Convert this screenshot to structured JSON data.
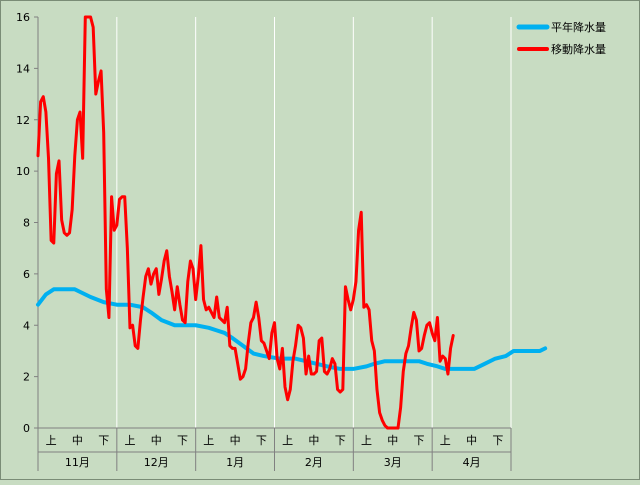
{
  "chart_data": {
    "type": "line",
    "title": "",
    "xlabel": "",
    "ylabel": "",
    "ylim": [
      0,
      16
    ],
    "yticks": [
      0,
      2,
      4,
      6,
      8,
      10,
      12,
      14,
      16
    ],
    "grid": "vertical",
    "legend_position": "right",
    "period_labels": [
      "上",
      "中",
      "下",
      "上",
      "中",
      "下",
      "上",
      "中",
      "下",
      "上",
      "中",
      "下",
      "上",
      "中",
      "下",
      "上",
      "中",
      "下"
    ],
    "month_labels": [
      "11月",
      "12月",
      "1月",
      "2月",
      "3月",
      "4月"
    ],
    "num_points": 181,
    "series": [
      {
        "name": "平年降水量",
        "color": "#00b0f0",
        "width": 4,
        "points": [
          [
            0,
            4.8
          ],
          [
            3,
            5.2
          ],
          [
            6,
            5.4
          ],
          [
            14,
            5.4
          ],
          [
            16,
            5.3
          ],
          [
            20,
            5.1
          ],
          [
            25,
            4.9
          ],
          [
            30,
            4.8
          ],
          [
            35,
            4.8
          ],
          [
            40,
            4.7
          ],
          [
            43,
            4.5
          ],
          [
            47,
            4.2
          ],
          [
            52,
            4.0
          ],
          [
            60,
            4.0
          ],
          [
            65,
            3.9
          ],
          [
            68,
            3.8
          ],
          [
            71,
            3.7
          ],
          [
            74,
            3.5
          ],
          [
            78,
            3.2
          ],
          [
            82,
            2.9
          ],
          [
            86,
            2.8
          ],
          [
            92,
            2.7
          ],
          [
            98,
            2.7
          ],
          [
            102,
            2.6
          ],
          [
            106,
            2.5
          ],
          [
            110,
            2.4
          ],
          [
            115,
            2.3
          ],
          [
            120,
            2.3
          ],
          [
            125,
            2.4
          ],
          [
            128,
            2.5
          ],
          [
            132,
            2.6
          ],
          [
            138,
            2.6
          ],
          [
            142,
            2.6
          ],
          [
            145,
            2.6
          ],
          [
            148,
            2.5
          ],
          [
            152,
            2.4
          ],
          [
            155,
            2.3
          ],
          [
            160,
            2.3
          ],
          [
            166,
            2.3
          ],
          [
            170,
            2.5
          ],
          [
            174,
            2.7
          ],
          [
            178,
            2.8
          ],
          [
            181,
            3.0
          ],
          [
            186,
            3.0
          ],
          [
            191,
            3.0
          ],
          [
            193,
            3.1
          ]
        ]
      },
      {
        "name": "移動降水量",
        "color": "#ff0000",
        "width": 3,
        "points": [
          [
            0,
            10.6
          ],
          [
            1,
            12.7
          ],
          [
            2,
            12.9
          ],
          [
            3,
            12.3
          ],
          [
            4,
            10.5
          ],
          [
            5,
            7.3
          ],
          [
            6,
            7.2
          ],
          [
            7,
            9.9
          ],
          [
            8,
            10.4
          ],
          [
            9,
            8.1
          ],
          [
            10,
            7.6
          ],
          [
            11,
            7.5
          ],
          [
            12,
            7.6
          ],
          [
            13,
            8.5
          ],
          [
            14,
            10.6
          ],
          [
            15,
            12.0
          ],
          [
            16,
            12.3
          ],
          [
            17,
            10.5
          ],
          [
            18,
            16.0
          ],
          [
            19,
            16.0
          ],
          [
            20,
            16.0
          ],
          [
            21,
            15.6
          ],
          [
            22,
            13.0
          ],
          [
            23,
            13.5
          ],
          [
            24,
            13.9
          ],
          [
            25,
            11.5
          ],
          [
            26,
            5.4
          ],
          [
            27,
            4.3
          ],
          [
            28,
            9.0
          ],
          [
            29,
            7.7
          ],
          [
            30,
            7.9
          ],
          [
            31,
            8.9
          ],
          [
            32,
            9.0
          ],
          [
            33,
            9.0
          ],
          [
            34,
            7.0
          ],
          [
            35,
            3.9
          ],
          [
            36,
            4.0
          ],
          [
            37,
            3.2
          ],
          [
            38,
            3.1
          ],
          [
            39,
            4.2
          ],
          [
            40,
            5.1
          ],
          [
            41,
            5.9
          ],
          [
            42,
            6.2
          ],
          [
            43,
            5.6
          ],
          [
            44,
            6.0
          ],
          [
            45,
            6.2
          ],
          [
            46,
            5.2
          ],
          [
            47,
            5.8
          ],
          [
            48,
            6.5
          ],
          [
            49,
            6.9
          ],
          [
            50,
            5.9
          ],
          [
            51,
            5.3
          ],
          [
            52,
            4.6
          ],
          [
            53,
            5.5
          ],
          [
            54,
            4.8
          ],
          [
            55,
            4.2
          ],
          [
            56,
            4.1
          ],
          [
            57,
            5.7
          ],
          [
            58,
            6.5
          ],
          [
            59,
            6.2
          ],
          [
            60,
            5.0
          ],
          [
            61,
            5.9
          ],
          [
            62,
            7.1
          ],
          [
            63,
            5.0
          ],
          [
            64,
            4.6
          ],
          [
            65,
            4.7
          ],
          [
            66,
            4.5
          ],
          [
            67,
            4.3
          ],
          [
            68,
            5.1
          ],
          [
            69,
            4.3
          ],
          [
            70,
            4.2
          ],
          [
            71,
            4.1
          ],
          [
            72,
            4.7
          ],
          [
            73,
            3.2
          ],
          [
            74,
            3.1
          ],
          [
            75,
            3.1
          ],
          [
            76,
            2.5
          ],
          [
            77,
            1.9
          ],
          [
            78,
            2.0
          ],
          [
            79,
            2.3
          ],
          [
            80,
            3.3
          ],
          [
            81,
            4.1
          ],
          [
            82,
            4.3
          ],
          [
            83,
            4.9
          ],
          [
            84,
            4.3
          ],
          [
            85,
            3.4
          ],
          [
            86,
            3.3
          ],
          [
            87,
            3.0
          ],
          [
            88,
            2.7
          ],
          [
            89,
            3.7
          ],
          [
            90,
            4.1
          ],
          [
            91,
            2.7
          ],
          [
            92,
            2.3
          ],
          [
            93,
            3.1
          ],
          [
            94,
            1.6
          ],
          [
            95,
            1.1
          ],
          [
            96,
            1.5
          ],
          [
            97,
            2.6
          ],
          [
            98,
            3.2
          ],
          [
            99,
            4.0
          ],
          [
            100,
            3.9
          ],
          [
            101,
            3.5
          ],
          [
            102,
            2.1
          ],
          [
            103,
            2.8
          ],
          [
            104,
            2.1
          ],
          [
            105,
            2.1
          ],
          [
            106,
            2.2
          ],
          [
            107,
            3.4
          ],
          [
            108,
            3.5
          ],
          [
            109,
            2.2
          ],
          [
            110,
            2.1
          ],
          [
            111,
            2.3
          ],
          [
            112,
            2.7
          ],
          [
            113,
            2.5
          ],
          [
            114,
            1.5
          ],
          [
            115,
            1.4
          ],
          [
            116,
            1.5
          ],
          [
            117,
            5.5
          ],
          [
            118,
            5.0
          ],
          [
            119,
            4.6
          ],
          [
            120,
            5.0
          ],
          [
            121,
            5.7
          ],
          [
            122,
            7.7
          ],
          [
            123,
            8.4
          ],
          [
            124,
            4.7
          ],
          [
            125,
            4.8
          ],
          [
            126,
            4.6
          ],
          [
            127,
            3.4
          ],
          [
            128,
            3.0
          ],
          [
            129,
            1.5
          ],
          [
            130,
            0.6
          ],
          [
            131,
            0.3
          ],
          [
            132,
            0.1
          ],
          [
            133,
            0.0
          ],
          [
            137,
            0.0
          ],
          [
            138,
            0.8
          ],
          [
            139,
            2.2
          ],
          [
            140,
            2.9
          ],
          [
            141,
            3.2
          ],
          [
            142,
            3.9
          ],
          [
            143,
            4.5
          ],
          [
            144,
            4.2
          ],
          [
            145,
            3.0
          ],
          [
            146,
            3.1
          ],
          [
            147,
            3.6
          ],
          [
            148,
            4.0
          ],
          [
            149,
            4.1
          ],
          [
            150,
            3.7
          ],
          [
            151,
            3.4
          ],
          [
            152,
            4.3
          ],
          [
            153,
            2.6
          ],
          [
            154,
            2.8
          ],
          [
            155,
            2.7
          ],
          [
            156,
            2.1
          ],
          [
            157,
            3.1
          ],
          [
            158,
            3.6
          ]
        ]
      }
    ]
  }
}
